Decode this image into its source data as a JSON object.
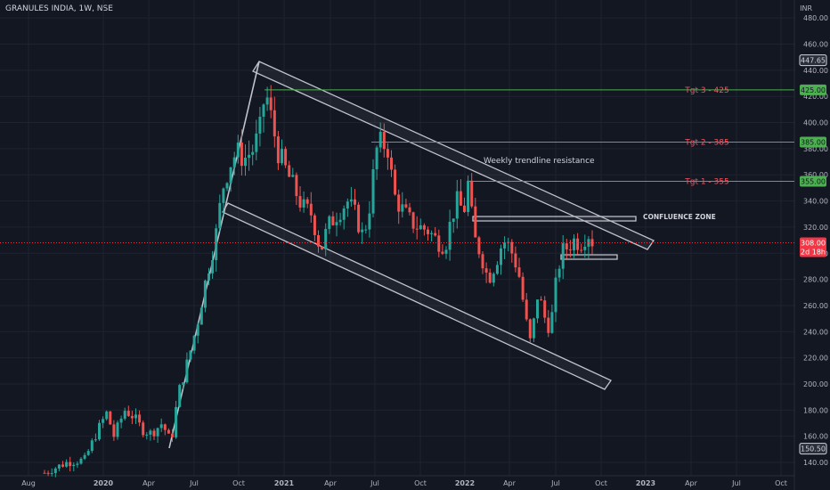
{
  "header": {
    "symbol_title": "GRANULES INDIA, 1W, NSE",
    "currency": "INR"
  },
  "colors": {
    "bg": "#131722",
    "up": "#26a69a",
    "down": "#ef5350",
    "grid": "#1f2330",
    "axis_text": "#b2b5be",
    "target_line": "#4caf50",
    "target_label": "#f7525f",
    "channel": "#c0c3cc",
    "price_badge": "#f23645"
  },
  "chart_data": {
    "type": "candlestick",
    "title": "GRANULES INDIA, 1W, NSE",
    "ylim": [
      134,
      490
    ],
    "y_ticks": [
      140,
      160,
      180,
      200,
      220,
      240,
      260,
      280,
      300,
      320,
      340,
      360,
      380,
      400,
      420,
      440,
      460,
      480
    ],
    "y_tick_labels": [
      "140.00",
      "160.00",
      "180.00",
      "200.00",
      "220.00",
      "240.00",
      "260.00",
      "280.00",
      "300.00",
      "320.00",
      "340.00",
      "360.00",
      "380.00",
      "400.00",
      "420.00",
      "440.00",
      "460.00",
      "480.00"
    ],
    "x_ticks": [
      "Aug",
      "2020",
      "Apr",
      "Jul",
      "Oct",
      "2021",
      "Apr",
      "Jul",
      "Oct",
      "2022",
      "Apr",
      "Jul",
      "Oct",
      "2023",
      "Apr",
      "Jul",
      "Oct"
    ],
    "price_badges": [
      {
        "label": "447.65",
        "value": 447.65,
        "style": "outline"
      },
      {
        "label": "425.00",
        "value": 425,
        "style": "green"
      },
      {
        "label": "385.00",
        "value": 385,
        "style": "green"
      },
      {
        "label": "355.00",
        "value": 355,
        "style": "green"
      },
      {
        "label": "308.00",
        "sub": "2d 18h",
        "value": 308,
        "style": "red"
      },
      {
        "label": "150.50",
        "value": 150.5,
        "style": "outline"
      }
    ],
    "targets": [
      {
        "label": "Tgt 3 - 425",
        "value": 425
      },
      {
        "label": "Tgt 2 - 385",
        "value": 385
      },
      {
        "label": "Tgt 1 - 355",
        "value": 355
      }
    ],
    "annotations": [
      {
        "text": "Weekly trendline resistance"
      },
      {
        "text": "CONFLUENCE ZONE"
      }
    ],
    "last_price": 308
  }
}
